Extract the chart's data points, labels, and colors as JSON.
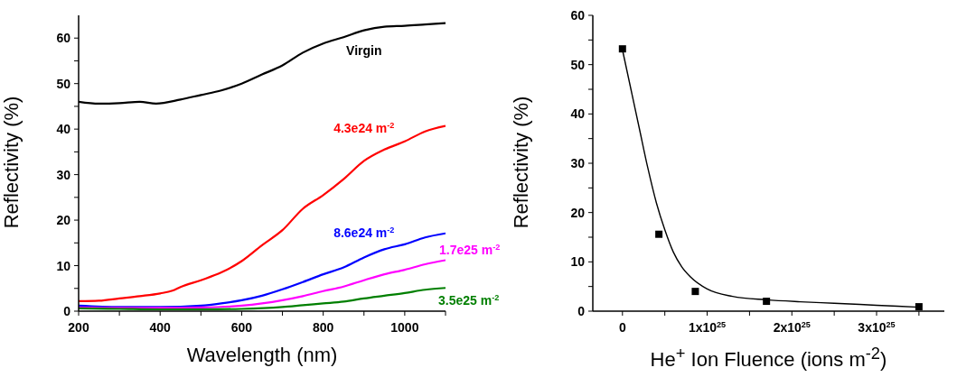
{
  "chart_data": [
    {
      "type": "line",
      "xlabel": "Wavelength (nm)",
      "ylabel": "Reflectivity (%)",
      "xlim": [
        200,
        1100
      ],
      "ylim": [
        0,
        65
      ],
      "xticks": [
        200,
        {
          "value": 300,
          "label": null
        },
        400,
        {
          "value": 500,
          "label": null
        },
        600,
        {
          "value": 700,
          "label": null
        },
        800,
        {
          "value": 900,
          "label": null
        },
        1000,
        {
          "value": 1100,
          "label": null
        }
      ],
      "yticks": [
        0,
        {
          "value": 5,
          "label": null
        },
        10,
        {
          "value": 15,
          "label": null
        },
        20,
        {
          "value": 25,
          "label": null
        },
        30,
        {
          "value": 35,
          "label": null
        },
        40,
        {
          "value": 45,
          "label": null
        },
        50,
        {
          "value": 55,
          "label": null
        },
        60
      ],
      "marker": "none",
      "line_style": "solid",
      "series": [
        {
          "name": "Virgin",
          "color": "#000000",
          "x": [
            200,
            250,
            300,
            350,
            390,
            450,
            500,
            550,
            600,
            650,
            700,
            750,
            800,
            850,
            900,
            950,
            1000,
            1050,
            1100
          ],
          "values": [
            46,
            45.6,
            45.7,
            46,
            45.6,
            46.5,
            47.5,
            48.5,
            50,
            52,
            54,
            56.8,
            58.8,
            60.2,
            61.7,
            62.5,
            62.7,
            63,
            63.3
          ]
        },
        {
          "name": "4.3e24 m$^{-2}$",
          "color": "#ff0000",
          "x": [
            200,
            250,
            300,
            350,
            400,
            430,
            450,
            500,
            550,
            600,
            650,
            700,
            750,
            800,
            850,
            900,
            950,
            1000,
            1050,
            1100
          ],
          "values": [
            2.2,
            2.3,
            2.8,
            3.3,
            3.9,
            4.5,
            5.3,
            6.8,
            8.5,
            11,
            14.5,
            17.8,
            22.5,
            25.5,
            29,
            33,
            35.5,
            37.3,
            39.5,
            40.7
          ]
        },
        {
          "name": "8.6e24 m$^{-2}$",
          "color": "#0000ff",
          "x": [
            200,
            300,
            400,
            500,
            550,
            600,
            650,
            700,
            750,
            800,
            850,
            900,
            950,
            1000,
            1050,
            1100
          ],
          "values": [
            1.2,
            0.9,
            0.9,
            1.2,
            1.7,
            2.4,
            3.4,
            4.8,
            6.4,
            8.1,
            9.6,
            11.8,
            13.6,
            14.7,
            16.2,
            17.1
          ]
        },
        {
          "name": "1.7e25 m$^{-2}$",
          "color": "#ff00ff",
          "x": [
            200,
            300,
            400,
            500,
            600,
            650,
            700,
            750,
            800,
            850,
            900,
            950,
            1000,
            1050,
            1100
          ],
          "values": [
            0.8,
            0.7,
            0.7,
            0.8,
            1.2,
            1.7,
            2.4,
            3.3,
            4.4,
            5.4,
            6.8,
            8.1,
            9.1,
            10.3,
            11.2
          ]
        },
        {
          "name": "3.5e25 m$^{-2}$",
          "color": "#007f00",
          "x": [
            200,
            300,
            400,
            500,
            600,
            700,
            750,
            800,
            850,
            900,
            950,
            1000,
            1050,
            1100
          ],
          "values": [
            0.6,
            0.5,
            0.4,
            0.4,
            0.5,
            0.9,
            1.3,
            1.7,
            2.1,
            2.8,
            3.4,
            4,
            4.7,
            5.1
          ]
        }
      ]
    },
    {
      "type": "scatter",
      "xlabel": "He$^{+}$ Ion Fluence (ions m$^{-2}$)",
      "ylabel": "Reflectivity (%)",
      "xlim": [
        -3.5e+24,
        3.8e+25
      ],
      "ylim": [
        0,
        60
      ],
      "xticks": [
        0,
        {
          "value": 5e+24,
          "label": null
        },
        {
          "value": 1e+25,
          "label": "1x10$^{25}$"
        },
        {
          "value": 1.5e+25,
          "label": null
        },
        {
          "value": 2e+25,
          "label": "2x10$^{25}$"
        },
        {
          "value": 2.5e+25,
          "label": null
        },
        {
          "value": 3e+25,
          "label": "3x10$^{25}$"
        },
        {
          "value": 3.5e+25,
          "label": null
        }
      ],
      "yticks": [
        0,
        {
          "value": 5,
          "label": null
        },
        10,
        {
          "value": 15,
          "label": null
        },
        20,
        {
          "value": 25,
          "label": null
        },
        30,
        {
          "value": 35,
          "label": null
        },
        40,
        {
          "value": 45,
          "label": null
        },
        50,
        {
          "value": 55,
          "label": null
        },
        60
      ],
      "series": [
        {
          "type": "line",
          "color": "#000000",
          "marker": "none",
          "line_style": "solid",
          "x": [
            0,
            1e+24,
            2e+24,
            3e+24,
            4e+24,
            5e+24,
            6e+24,
            7e+24,
            8e+24,
            1e+25,
            1.3e+25,
            1.7e+25,
            2.1e+25,
            2.5e+25,
            3e+25,
            3.5e+25
          ],
          "values": [
            53,
            45,
            37,
            29,
            22,
            16.5,
            12,
            9,
            7,
            4.5,
            3,
            2.3,
            1.9,
            1.6,
            1.2,
            0.8
          ]
        },
        {
          "color": "#000000",
          "marker": "square",
          "x": [
            0,
            4.3e+24,
            8.6e+24,
            1.7e+25,
            3.5e+25
          ],
          "values": [
            53.2,
            15.6,
            4,
            2,
            0.9
          ]
        }
      ]
    }
  ]
}
